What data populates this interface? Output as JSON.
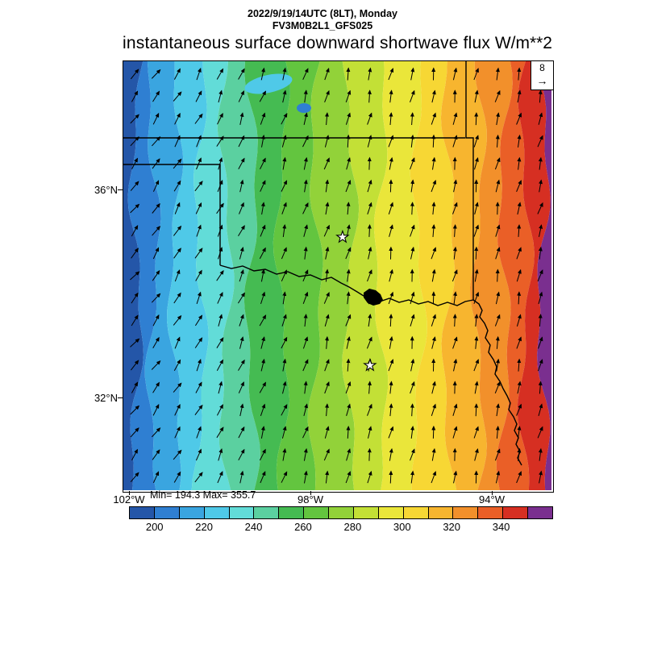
{
  "header": {
    "datetime": "2022/9/19/14UTC (8LT), Monday",
    "model": "FV3M0B2L1_GFS025",
    "title": "instantaneous surface downward shortwave flux",
    "units": "W/m**2"
  },
  "map": {
    "lat_labels": [
      "36°N",
      "32°N"
    ],
    "lon_labels": [
      "102°W",
      "98°W",
      "94°W"
    ],
    "stats": "Min= 194.3 Max= 355.7",
    "wind_ref_value": "8"
  },
  "colorbar": {
    "ticks": [
      "200",
      "220",
      "240",
      "260",
      "280",
      "300",
      "320",
      "340"
    ],
    "colors": [
      "#2456a8",
      "#2f7fd2",
      "#3aa5e0",
      "#4fc9e8",
      "#62dcd8",
      "#5bd0a0",
      "#45bb52",
      "#63c53f",
      "#92d239",
      "#c3e036",
      "#eae63a",
      "#f7d734",
      "#f7b52f",
      "#f2902b",
      "#ea5f27",
      "#d62f22",
      "#7a2f8f"
    ]
  },
  "chart_data": {
    "type": "heatmap",
    "title": "instantaneous surface downward shortwave flux",
    "units": "W/m**2",
    "run_label": "2022/9/19/14UTC (8LT), Monday",
    "model": "FV3M0B2L1_GFS025",
    "field_min": 194.3,
    "field_max": 355.7,
    "x_tick_labels": [
      "102°W",
      "98°W",
      "94°W"
    ],
    "y_tick_labels": [
      "36°N",
      "32°N"
    ],
    "colorbar_levels": [
      200,
      220,
      240,
      260,
      280,
      300,
      320,
      340
    ],
    "colorbar_colors": [
      "#2456a8",
      "#2f7fd2",
      "#3aa5e0",
      "#4fc9e8",
      "#62dcd8",
      "#5bd0a0",
      "#45bb52",
      "#63c53f",
      "#92d239",
      "#c3e036",
      "#eae63a",
      "#f7d734",
      "#f7b52f",
      "#f2902b",
      "#ea5f27",
      "#d62f22",
      "#7a2f8f"
    ],
    "pattern": "vertical color bands over state map, flux increasing from ~195 W/m**2 in the west (blue) to ~356 W/m**2 in the east (dark red/purple), wind arrows pointing generally north-northeast",
    "bands": [
      {
        "color": "#2456a8",
        "width": 3
      },
      {
        "color": "#2f7fd2",
        "width": 4
      },
      {
        "color": "#3aa5e0",
        "width": 5
      },
      {
        "color": "#4fc9e8",
        "width": 6
      },
      {
        "color": "#62dcd8",
        "width": 6
      },
      {
        "color": "#5bd0a0",
        "width": 6
      },
      {
        "color": "#45bb52",
        "width": 7
      },
      {
        "color": "#63c53f",
        "width": 8
      },
      {
        "color": "#92d239",
        "width": 8
      },
      {
        "color": "#c3e036",
        "width": 7
      },
      {
        "color": "#eae63a",
        "width": 9
      },
      {
        "color": "#f7d734",
        "width": 7
      },
      {
        "color": "#f7b52f",
        "width": 7
      },
      {
        "color": "#f2902b",
        "width": 6
      },
      {
        "color": "#ea5f27",
        "width": 5
      },
      {
        "color": "#d62f22",
        "width": 4
      },
      {
        "color": "#7a2f8f",
        "width": 2
      }
    ],
    "wind_reference_arrow": 8,
    "wind_arrows": {
      "cols": 20,
      "rows": 19
    },
    "star_markers": [
      {
        "x_frac": 0.512,
        "y_frac": 0.41
      },
      {
        "x_frac": 0.576,
        "y_frac": 0.709
      }
    ]
  }
}
